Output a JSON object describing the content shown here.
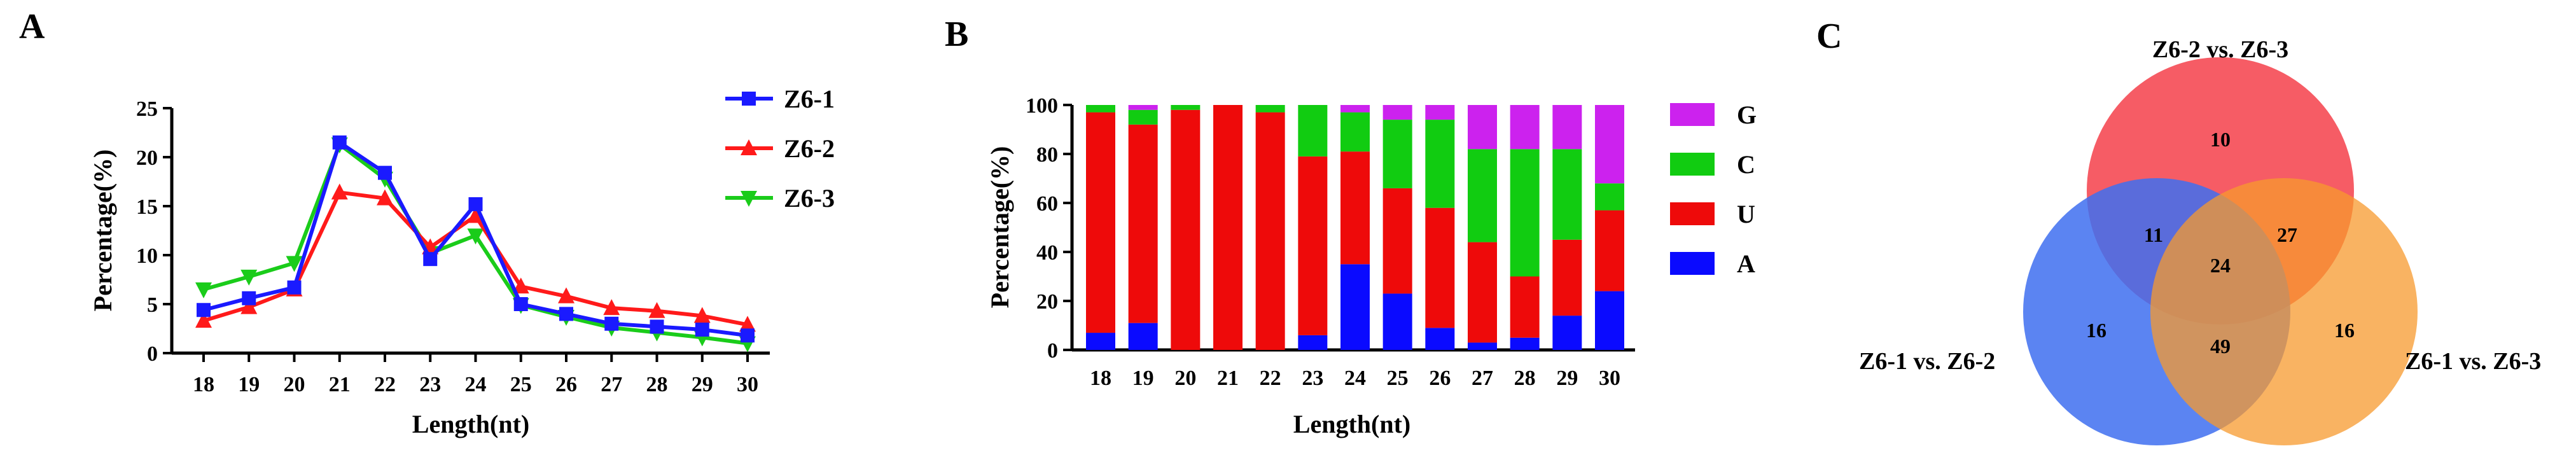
{
  "chart_data": [
    {
      "type": "line",
      "panel_label": "A",
      "title": "",
      "xlabel": "Length(nt)",
      "ylabel": "Percentage(%)",
      "ylim": [
        0,
        25
      ],
      "yticks": [
        "0",
        "5",
        "10",
        "15",
        "20",
        "25"
      ],
      "x": [
        "18",
        "19",
        "20",
        "21",
        "22",
        "23",
        "24",
        "25",
        "26",
        "27",
        "28",
        "29",
        "30"
      ],
      "series": [
        {
          "name": "Z6-1",
          "color": "#1a1aff",
          "marker": "square",
          "values": [
            4.4,
            5.6,
            6.7,
            21.5,
            18.4,
            9.6,
            15.2,
            5.0,
            4.0,
            3.0,
            2.7,
            2.4,
            1.8
          ]
        },
        {
          "name": "Z6-2",
          "color": "#ff1a1a",
          "marker": "triangle-up",
          "values": [
            3.3,
            4.7,
            6.5,
            16.4,
            15.8,
            10.8,
            14.0,
            6.8,
            5.8,
            4.6,
            4.3,
            3.8,
            2.9
          ]
        },
        {
          "name": "Z6-3",
          "color": "#1acc1a",
          "marker": "triangle-down",
          "values": [
            6.5,
            7.8,
            9.2,
            21.3,
            17.8,
            10.2,
            12.0,
            4.9,
            3.7,
            2.6,
            2.1,
            1.6,
            1.0
          ]
        }
      ],
      "legend_position": "top-right",
      "grid": false
    },
    {
      "type": "bar",
      "stacked": true,
      "panel_label": "B",
      "title": "",
      "xlabel": "Length(nt)",
      "ylabel": "Percentage(%)",
      "ylim": [
        0,
        100
      ],
      "yticks": [
        "0",
        "20",
        "40",
        "60",
        "80",
        "100"
      ],
      "categories": [
        "18",
        "19",
        "20",
        "21",
        "22",
        "23",
        "24",
        "25",
        "26",
        "27",
        "28",
        "29",
        "30"
      ],
      "series": [
        {
          "name": "A",
          "color": "#0a0aff",
          "values": [
            7,
            11,
            0,
            0,
            0,
            6,
            35,
            23,
            9,
            3,
            5,
            14,
            24
          ]
        },
        {
          "name": "U",
          "color": "#ee0a0a",
          "values": [
            90,
            81,
            98,
            100,
            97,
            73,
            46,
            43,
            49,
            41,
            25,
            31,
            33
          ]
        },
        {
          "name": "C",
          "color": "#11cc11",
          "values": [
            3,
            6,
            2,
            0,
            3,
            21,
            16,
            28,
            36,
            38,
            52,
            37,
            11
          ]
        },
        {
          "name": "G",
          "color": "#cc22ee",
          "values": [
            0,
            2,
            0,
            0,
            0,
            0,
            3,
            6,
            6,
            18,
            18,
            18,
            32
          ]
        }
      ],
      "legend_order": [
        "G",
        "C",
        "U",
        "A"
      ],
      "legend_position": "right",
      "grid": false
    },
    {
      "type": "venn",
      "panel_label": "C",
      "sets": [
        {
          "name": "Z6-1 vs. Z6-2",
          "color": "#3e6ef0"
        },
        {
          "name": "Z6-2 vs. Z6-3",
          "color": "#f53f4a"
        },
        {
          "name": "Z6-1 vs. Z6-3",
          "color": "#f79a2e"
        }
      ],
      "regions": {
        "only_12": "16",
        "only_23": "10",
        "only_13": "16",
        "12_23": "11",
        "23_13": "27",
        "12_13": "49",
        "all": "24"
      }
    }
  ]
}
